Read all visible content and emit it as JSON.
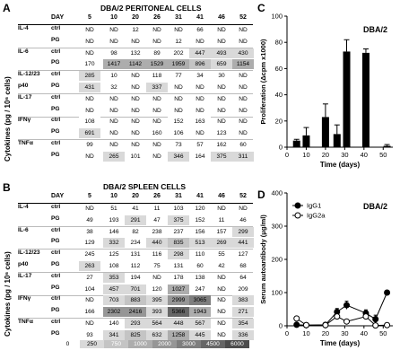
{
  "panels": {
    "a": "A",
    "b": "B",
    "c": "C",
    "d": "D"
  },
  "tableA": {
    "title": "DBA/2 PERITONEAL CELLS",
    "day_label": "DAY",
    "days": [
      "5",
      "10",
      "20",
      "26",
      "31",
      "41",
      "46",
      "52"
    ],
    "rows": [
      {
        "cytokine": "IL-4",
        "treat": "ctrl",
        "vals": [
          "ND",
          "ND",
          "12",
          "ND",
          "ND",
          "66",
          "ND",
          "ND"
        ]
      },
      {
        "cytokine": "",
        "treat": "PG",
        "vals": [
          "ND",
          "ND",
          "ND",
          "ND",
          "12",
          "ND",
          "ND",
          "ND"
        ]
      },
      {
        "cytokine": "IL-6",
        "treat": "ctrl",
        "vals": [
          "ND",
          "98",
          "132",
          "89",
          "202",
          "447",
          "493",
          "430"
        ]
      },
      {
        "cytokine": "",
        "treat": "PG",
        "vals": [
          "170",
          "1417",
          "1142",
          "1529",
          "1959",
          "896",
          "659",
          "1154"
        ]
      },
      {
        "cytokine": "IL-12/23",
        "treat": "ctrl",
        "vals": [
          "285",
          "10",
          "ND",
          "118",
          "77",
          "34",
          "30",
          "ND"
        ]
      },
      {
        "cytokine": "p40",
        "treat": "PG",
        "vals": [
          "431",
          "32",
          "ND",
          "337",
          "ND",
          "ND",
          "ND",
          "ND"
        ]
      },
      {
        "cytokine": "IL-17",
        "treat": "ctrl",
        "vals": [
          "ND",
          "ND",
          "ND",
          "ND",
          "ND",
          "ND",
          "ND",
          "ND"
        ]
      },
      {
        "cytokine": "",
        "treat": "PG",
        "vals": [
          "ND",
          "ND",
          "ND",
          "ND",
          "ND",
          "ND",
          "ND",
          "ND"
        ]
      },
      {
        "cytokine": "IFNγ",
        "treat": "ctrl",
        "vals": [
          "108",
          "ND",
          "ND",
          "ND",
          "152",
          "163",
          "ND",
          "ND"
        ]
      },
      {
        "cytokine": "",
        "treat": "PG",
        "vals": [
          "691",
          "ND",
          "ND",
          "160",
          "106",
          "ND",
          "123",
          "ND"
        ]
      },
      {
        "cytokine": "TNFα",
        "treat": "ctrl",
        "vals": [
          "99",
          "ND",
          "ND",
          "ND",
          "73",
          "57",
          "162",
          "60"
        ]
      },
      {
        "cytokine": "",
        "treat": "PG",
        "vals": [
          "ND",
          "265",
          "101",
          "ND",
          "346",
          "164",
          "375",
          "311"
        ]
      }
    ]
  },
  "tableB": {
    "title": "DBA/2 SPLEEN CELLS",
    "day_label": "DAY",
    "days": [
      "5",
      "10",
      "20",
      "26",
      "31",
      "41",
      "46",
      "52"
    ],
    "rows": [
      {
        "cytokine": "IL-4",
        "treat": "ctrl",
        "vals": [
          "ND",
          "51",
          "41",
          "11",
          "103",
          "120",
          "ND",
          "ND"
        ]
      },
      {
        "cytokine": "",
        "treat": "PG",
        "vals": [
          "49",
          "193",
          "291",
          "47",
          "375",
          "152",
          "11",
          "46"
        ]
      },
      {
        "cytokine": "IL-6",
        "treat": "ctrl",
        "vals": [
          "38",
          "146",
          "82",
          "238",
          "237",
          "156",
          "157",
          "299"
        ]
      },
      {
        "cytokine": "",
        "treat": "PG",
        "vals": [
          "129",
          "332",
          "234",
          "440",
          "835",
          "513",
          "269",
          "441"
        ]
      },
      {
        "cytokine": "IL-12/23",
        "treat": "ctrl",
        "vals": [
          "245",
          "125",
          "131",
          "116",
          "298",
          "110",
          "55",
          "127"
        ]
      },
      {
        "cytokine": "p40",
        "treat": "PG",
        "vals": [
          "263",
          "108",
          "112",
          "75",
          "131",
          "60",
          "42",
          "68"
        ]
      },
      {
        "cytokine": "IL-17",
        "treat": "ctrl",
        "vals": [
          "27",
          "353",
          "194",
          "ND",
          "178",
          "138",
          "ND",
          "64"
        ]
      },
      {
        "cytokine": "",
        "treat": "PG",
        "vals": [
          "104",
          "457",
          "701",
          "120",
          "1027",
          "247",
          "ND",
          "209"
        ]
      },
      {
        "cytokine": "IFNγ",
        "treat": "ctrl",
        "vals": [
          "ND",
          "703",
          "883",
          "395",
          "2999",
          "3065",
          "ND",
          "383"
        ]
      },
      {
        "cytokine": "",
        "treat": "PG",
        "vals": [
          "166",
          "2302",
          "2416",
          "393",
          "5366",
          "1943",
          "ND",
          "271"
        ]
      },
      {
        "cytokine": "TNFα",
        "treat": "ctrl",
        "vals": [
          "ND",
          "140",
          "293",
          "564",
          "448",
          "567",
          "ND",
          "354"
        ]
      },
      {
        "cytokine": "",
        "treat": "PG",
        "vals": [
          "93",
          "341",
          "825",
          "632",
          "1258",
          "445",
          "ND",
          "336"
        ]
      }
    ]
  },
  "axis_label_cytokines": "Cytokines (pg / 10⁶ cells)",
  "scale": {
    "labels": [
      "0",
      "250",
      "750",
      "1000",
      "2000",
      "3000",
      "4500",
      "6000"
    ],
    "colors": [
      "#ffffff",
      "#d9d9d9",
      "#c4c4c4",
      "#adadad",
      "#969696",
      "#7e7e7e",
      "#666666",
      "#4c4c4c"
    ]
  },
  "chart_data": [
    {
      "type": "bar",
      "panel": "C",
      "annotation": "DBA/2",
      "xlabel": "Time (days)",
      "ylabel": "Proliferation (Δcpm x1000)",
      "xlim": [
        0,
        55
      ],
      "ylim": [
        0,
        100
      ],
      "xticks": [
        0,
        10,
        20,
        30,
        40,
        50
      ],
      "yticks": [
        0,
        20,
        40,
        60,
        80,
        100
      ],
      "x": [
        5,
        10,
        20,
        26,
        31,
        41,
        52
      ],
      "values": [
        5,
        9,
        23,
        10,
        73,
        72,
        1
      ],
      "errors": [
        1,
        6,
        10,
        7,
        9,
        3,
        1
      ]
    },
    {
      "type": "line",
      "panel": "D",
      "annotation": "DBA/2",
      "xlabel": "Time (days)",
      "ylabel": "Serum autoantibody (μg/ml)",
      "xlim": [
        0,
        55
      ],
      "ylim": [
        0,
        400
      ],
      "xticks": [
        0,
        10,
        20,
        30,
        40,
        50
      ],
      "yticks": [
        0,
        100,
        200,
        300,
        400
      ],
      "series": [
        {
          "name": "IgG1",
          "x": [
            5,
            10,
            20,
            26,
            31,
            41,
            46,
            52
          ],
          "y": [
            3,
            2,
            3,
            42,
            62,
            38,
            20,
            100
          ],
          "err": [
            2,
            1,
            2,
            10,
            12,
            10,
            12,
            5
          ]
        },
        {
          "name": "IgG2a",
          "x": [
            5,
            10,
            20,
            26,
            31,
            41,
            46,
            52
          ],
          "y": [
            22,
            2,
            2,
            28,
            13,
            28,
            1,
            2
          ],
          "err": [
            5,
            1,
            1,
            8,
            5,
            8,
            1,
            1
          ]
        }
      ]
    }
  ]
}
